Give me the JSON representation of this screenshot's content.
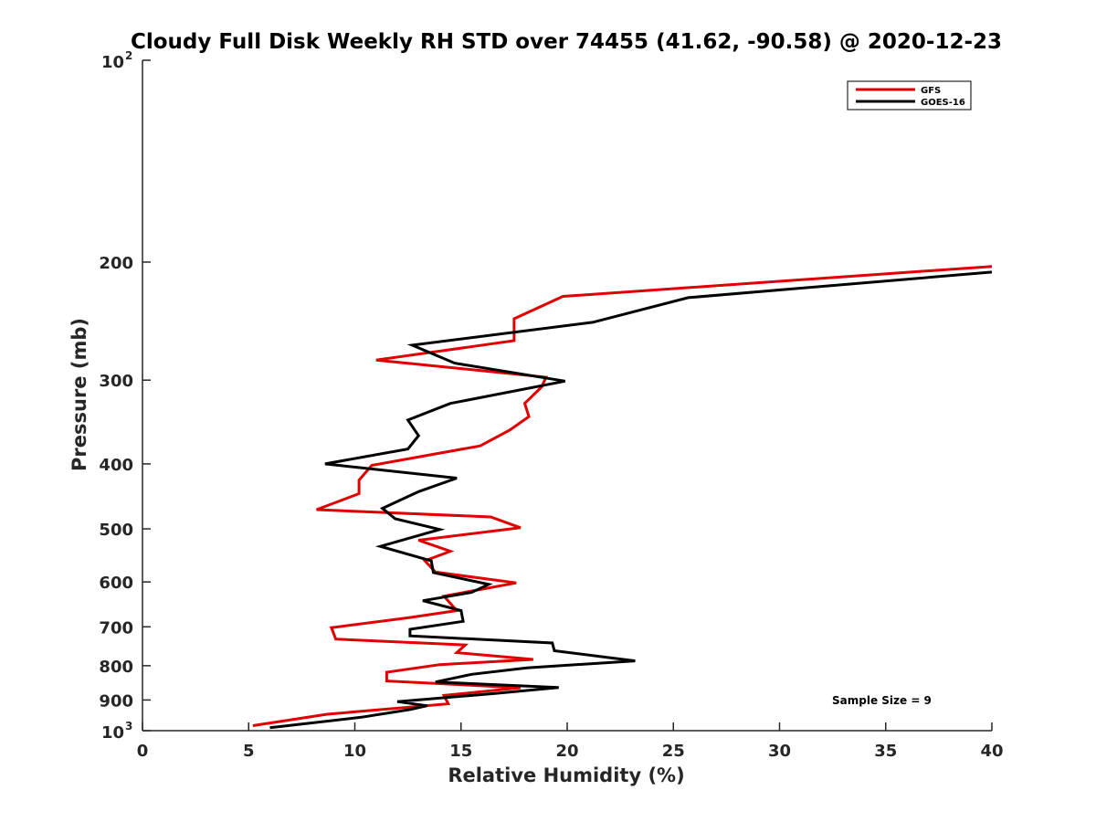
{
  "chart_data": {
    "type": "line",
    "title": "Cloudy Full Disk Weekly RH STD over 74455 (41.62, -90.58) @ 2020-12-23",
    "xlabel": "Relative Humidity (%)",
    "ylabel": "Pressure (mb)",
    "xlim": [
      0,
      40
    ],
    "ylim": [
      100,
      1000
    ],
    "y_scale": "log",
    "y_reversed": true,
    "grid": false,
    "legend_position": "top-right",
    "x_ticks": [
      0,
      5,
      10,
      15,
      20,
      25,
      30,
      35,
      40
    ],
    "x_tick_labels": [
      "0",
      "5",
      "10",
      "15",
      "20",
      "25",
      "30",
      "35",
      "40"
    ],
    "y_ticks": [
      200,
      300,
      400,
      500,
      600,
      700,
      800,
      900
    ],
    "y_tick_labels": [
      "200",
      "300",
      "400",
      "500",
      "600",
      "700",
      "800",
      "900"
    ],
    "y_top_label": {
      "base": "10",
      "exp": "2"
    },
    "y_bottom_label": {
      "base": "10",
      "exp": "3"
    },
    "annotation": "Sample Size = 9",
    "series": [
      {
        "name": "GFS",
        "color": "#e00000",
        "points": [
          [
            40.0,
            203
          ],
          [
            19.8,
            225
          ],
          [
            17.5,
            243
          ],
          [
            17.5,
            262
          ],
          [
            11.0,
            280
          ],
          [
            19.0,
            297
          ],
          [
            18.8,
            307
          ],
          [
            18.0,
            325
          ],
          [
            18.2,
            340
          ],
          [
            17.3,
            356
          ],
          [
            15.9,
            376
          ],
          [
            10.8,
            402
          ],
          [
            10.2,
            423
          ],
          [
            10.2,
            443
          ],
          [
            8.2,
            468
          ],
          [
            16.4,
            480
          ],
          [
            17.8,
            498
          ],
          [
            13.0,
            520
          ],
          [
            14.5,
            540
          ],
          [
            13.3,
            558
          ],
          [
            13.8,
            580
          ],
          [
            17.6,
            602
          ],
          [
            14.2,
            630
          ],
          [
            14.8,
            662
          ],
          [
            12.6,
            678
          ],
          [
            8.9,
            702
          ],
          [
            9.1,
            730
          ],
          [
            15.2,
            745
          ],
          [
            14.8,
            765
          ],
          [
            18.4,
            783
          ],
          [
            14.0,
            797
          ],
          [
            11.5,
            818
          ],
          [
            11.5,
            843
          ],
          [
            17.8,
            863
          ],
          [
            14.2,
            886
          ],
          [
            14.4,
            912
          ],
          [
            8.7,
            945
          ],
          [
            5.2,
            983
          ]
        ]
      },
      {
        "name": "GOES-16",
        "color": "#000000",
        "points": [
          [
            40.0,
            207
          ],
          [
            25.7,
            226
          ],
          [
            21.2,
            246
          ],
          [
            12.7,
            266
          ],
          [
            14.7,
            283
          ],
          [
            19.9,
            301
          ],
          [
            14.5,
            325
          ],
          [
            12.5,
            344
          ],
          [
            13.0,
            363
          ],
          [
            12.5,
            380
          ],
          [
            8.6,
            400
          ],
          [
            14.8,
            420
          ],
          [
            13.0,
            440
          ],
          [
            11.3,
            466
          ],
          [
            11.9,
            483
          ],
          [
            14.0,
            501
          ],
          [
            11.2,
            531
          ],
          [
            13.6,
            558
          ],
          [
            13.7,
            581
          ],
          [
            16.3,
            605
          ],
          [
            15.5,
            622
          ],
          [
            13.2,
            640
          ],
          [
            15.0,
            662
          ],
          [
            15.1,
            687
          ],
          [
            12.6,
            706
          ],
          [
            12.6,
            722
          ],
          [
            19.3,
            740
          ],
          [
            19.4,
            760
          ],
          [
            23.2,
            787
          ],
          [
            18.1,
            806
          ],
          [
            15.5,
            824
          ],
          [
            13.8,
            846
          ],
          [
            19.6,
            862
          ],
          [
            16.6,
            880
          ],
          [
            12.0,
            905
          ],
          [
            13.4,
            918
          ],
          [
            12.6,
            930
          ],
          [
            10.3,
            955
          ],
          [
            6.0,
            990
          ]
        ]
      }
    ]
  }
}
